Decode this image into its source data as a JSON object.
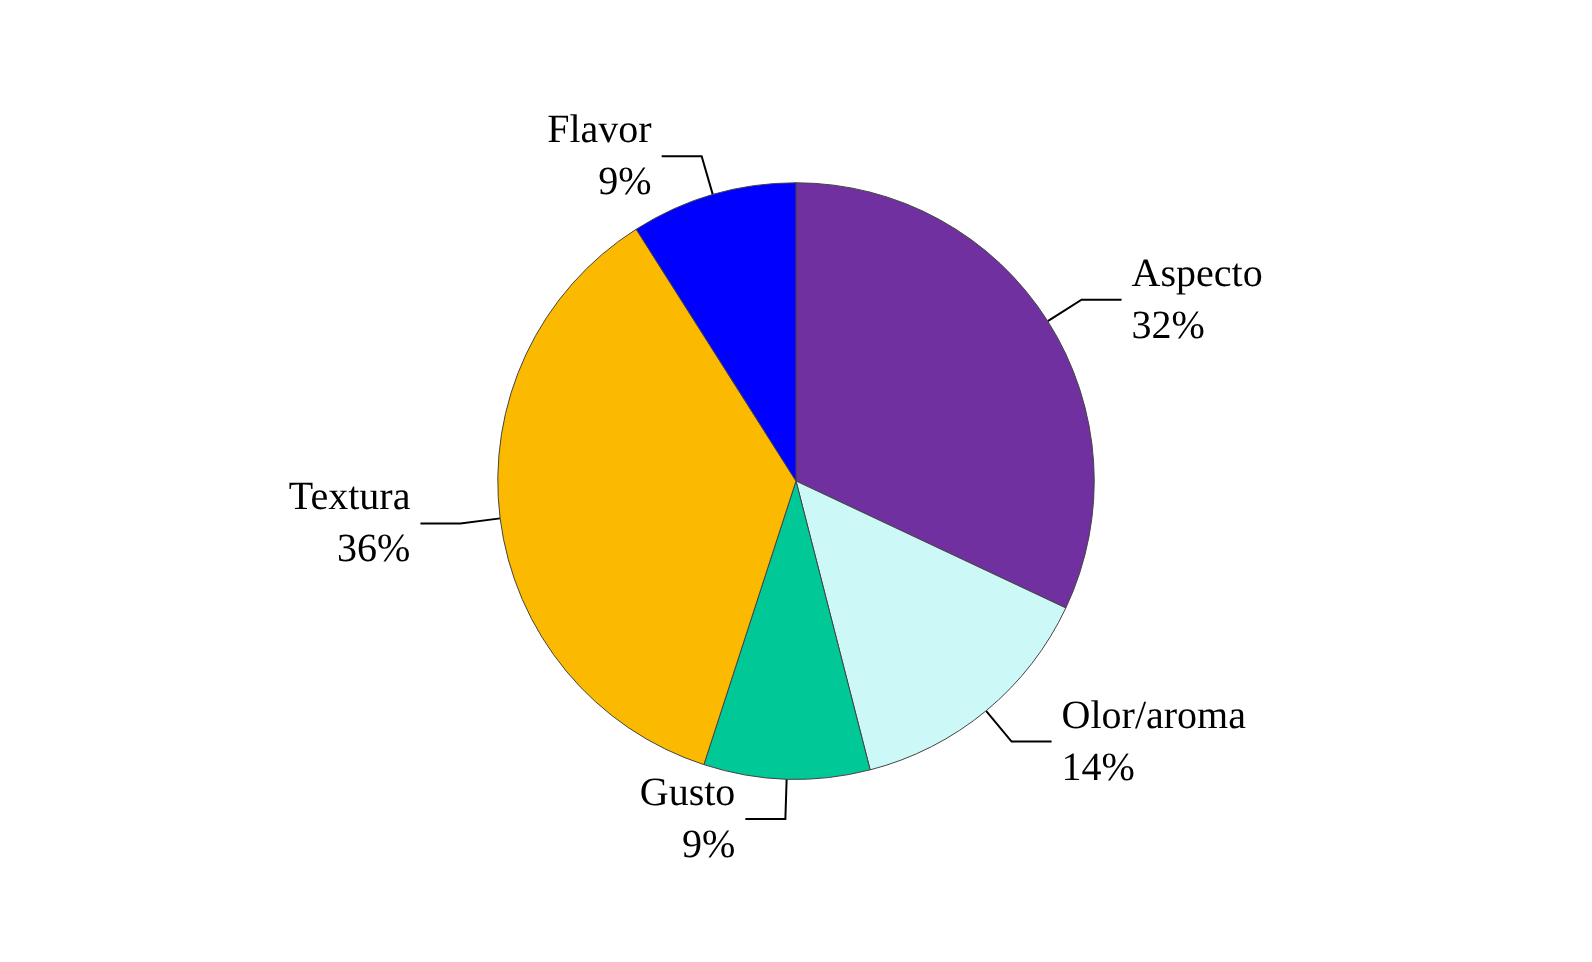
{
  "chart_data": {
    "type": "pie",
    "categories": [
      "Aspecto",
      "Olor/aroma",
      "Gusto",
      "Textura",
      "Flavor"
    ],
    "values": [
      32,
      14,
      9,
      36,
      9
    ],
    "value_labels": [
      "32%",
      "14%",
      "9%",
      "36%",
      "9%"
    ],
    "colors": [
      "#7030a0",
      "#ccf8f8",
      "#00c896",
      "#fbb900",
      "#0000ff"
    ],
    "legend": false
  }
}
